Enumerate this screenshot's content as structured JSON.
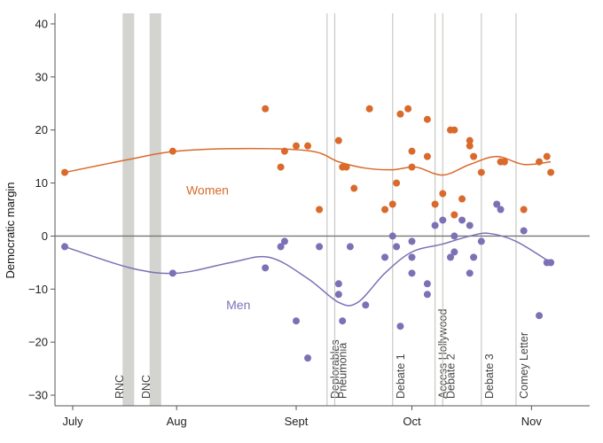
{
  "chart_data": {
    "type": "scatter",
    "title": "",
    "xlabel": "",
    "ylabel": "Democratic margin",
    "ylim": [
      -32,
      42
    ],
    "yticks": [
      -30,
      -20,
      -10,
      0,
      10,
      20,
      30,
      40
    ],
    "x_unit": "date (2016)",
    "xlim": [
      "2016-07-03",
      "2016-11-07"
    ],
    "xticks": [
      {
        "date": "2016-07-01",
        "label": "July"
      },
      {
        "date": "2016-08-01",
        "label": "Aug"
      },
      {
        "date": "2016-09-01",
        "label": "Sept"
      },
      {
        "date": "2016-10-01",
        "label": "Oct"
      },
      {
        "date": "2016-11-01",
        "label": "Nov"
      }
    ],
    "zero_line": 0,
    "bands": [
      {
        "name": "RNC",
        "start": "2016-07-18",
        "end": "2016-07-21"
      },
      {
        "name": "DNC",
        "start": "2016-07-25",
        "end": "2016-07-28"
      }
    ],
    "events": [
      {
        "name": "Deplorables",
        "date": "2016-09-09"
      },
      {
        "name": "Pneumonia",
        "date": "2016-09-11"
      },
      {
        "name": "Debate 1",
        "date": "2016-09-26"
      },
      {
        "name": "Access Hollywood",
        "date": "2016-10-07"
      },
      {
        "name": "Debate 2",
        "date": "2016-10-09"
      },
      {
        "name": "Debate 3",
        "date": "2016-10-19"
      },
      {
        "name": "Comey Letter",
        "date": "2016-10-28"
      }
    ],
    "series": [
      {
        "name": "Women",
        "color": "#d96a2b",
        "points": [
          [
            "2016-07-03",
            12
          ],
          [
            "2016-07-31",
            16
          ],
          [
            "2016-08-24",
            24
          ],
          [
            "2016-08-28",
            13
          ],
          [
            "2016-08-29",
            16
          ],
          [
            "2016-09-01",
            17
          ],
          [
            "2016-09-04",
            17
          ],
          [
            "2016-09-07",
            5
          ],
          [
            "2016-09-12",
            18
          ],
          [
            "2016-09-13",
            13
          ],
          [
            "2016-09-14",
            13
          ],
          [
            "2016-09-16",
            9
          ],
          [
            "2016-09-20",
            24
          ],
          [
            "2016-09-24",
            5
          ],
          [
            "2016-09-26",
            6
          ],
          [
            "2016-09-27",
            10
          ],
          [
            "2016-09-28",
            23
          ],
          [
            "2016-09-30",
            24
          ],
          [
            "2016-10-01",
            16
          ],
          [
            "2016-10-01",
            13
          ],
          [
            "2016-10-05",
            22
          ],
          [
            "2016-10-05",
            15
          ],
          [
            "2016-10-07",
            6
          ],
          [
            "2016-10-09",
            8
          ],
          [
            "2016-10-11",
            20
          ],
          [
            "2016-10-12",
            4
          ],
          [
            "2016-10-12",
            20
          ],
          [
            "2016-10-14",
            7
          ],
          [
            "2016-10-16",
            18
          ],
          [
            "2016-10-16",
            17
          ],
          [
            "2016-10-17",
            15
          ],
          [
            "2016-10-19",
            12
          ],
          [
            "2016-10-24",
            14
          ],
          [
            "2016-10-25",
            14
          ],
          [
            "2016-10-30",
            5
          ],
          [
            "2016-11-03",
            14
          ],
          [
            "2016-11-05",
            15
          ],
          [
            "2016-11-06",
            12
          ]
        ],
        "trend": [
          [
            "2016-07-03",
            12
          ],
          [
            "2016-07-20",
            14.5
          ],
          [
            "2016-08-01",
            16
          ],
          [
            "2016-08-20",
            16.5
          ],
          [
            "2016-09-05",
            16
          ],
          [
            "2016-09-12",
            14
          ],
          [
            "2016-09-19",
            12.8
          ],
          [
            "2016-09-26",
            12.5
          ],
          [
            "2016-10-02",
            13
          ],
          [
            "2016-10-09",
            11.5
          ],
          [
            "2016-10-16",
            13.5
          ],
          [
            "2016-10-23",
            15
          ],
          [
            "2016-10-30",
            13.5
          ],
          [
            "2016-11-06",
            14
          ]
        ]
      },
      {
        "name": "Men",
        "color": "#7d70b5",
        "points": [
          [
            "2016-07-03",
            -2
          ],
          [
            "2016-07-31",
            -7
          ],
          [
            "2016-08-24",
            -6
          ],
          [
            "2016-08-28",
            -2
          ],
          [
            "2016-08-29",
            -1
          ],
          [
            "2016-09-01",
            -16
          ],
          [
            "2016-09-04",
            -23
          ],
          [
            "2016-09-07",
            -2
          ],
          [
            "2016-09-12",
            -9
          ],
          [
            "2016-09-12",
            -11
          ],
          [
            "2016-09-13",
            -16
          ],
          [
            "2016-09-15",
            -2
          ],
          [
            "2016-09-19",
            -13
          ],
          [
            "2016-09-24",
            -4
          ],
          [
            "2016-09-26",
            0
          ],
          [
            "2016-09-27",
            -2
          ],
          [
            "2016-09-28",
            -17
          ],
          [
            "2016-10-01",
            -1
          ],
          [
            "2016-10-01",
            -4
          ],
          [
            "2016-10-01",
            -7
          ],
          [
            "2016-10-05",
            -9
          ],
          [
            "2016-10-05",
            -11
          ],
          [
            "2016-10-07",
            2
          ],
          [
            "2016-10-09",
            3
          ],
          [
            "2016-10-11",
            -4
          ],
          [
            "2016-10-12",
            0
          ],
          [
            "2016-10-12",
            -3
          ],
          [
            "2016-10-14",
            3
          ],
          [
            "2016-10-16",
            2
          ],
          [
            "2016-10-16",
            -7
          ],
          [
            "2016-10-17",
            -4
          ],
          [
            "2016-10-19",
            -1
          ],
          [
            "2016-10-23",
            6
          ],
          [
            "2016-10-24",
            5
          ],
          [
            "2016-10-30",
            1
          ],
          [
            "2016-11-03",
            -15
          ],
          [
            "2016-11-05",
            -5
          ],
          [
            "2016-11-06",
            -5
          ]
        ],
        "trend": [
          [
            "2016-07-03",
            -2
          ],
          [
            "2016-07-20",
            -6
          ],
          [
            "2016-08-01",
            -7
          ],
          [
            "2016-08-15",
            -5
          ],
          [
            "2016-08-25",
            -4
          ],
          [
            "2016-09-04",
            -8
          ],
          [
            "2016-09-12",
            -12.5
          ],
          [
            "2016-09-17",
            -12.5
          ],
          [
            "2016-09-24",
            -7
          ],
          [
            "2016-10-01",
            -3
          ],
          [
            "2016-10-09",
            -1.5
          ],
          [
            "2016-10-16",
            0
          ],
          [
            "2016-10-21",
            0.5
          ],
          [
            "2016-10-28",
            -1
          ],
          [
            "2016-11-06",
            -5
          ]
        ]
      }
    ]
  }
}
